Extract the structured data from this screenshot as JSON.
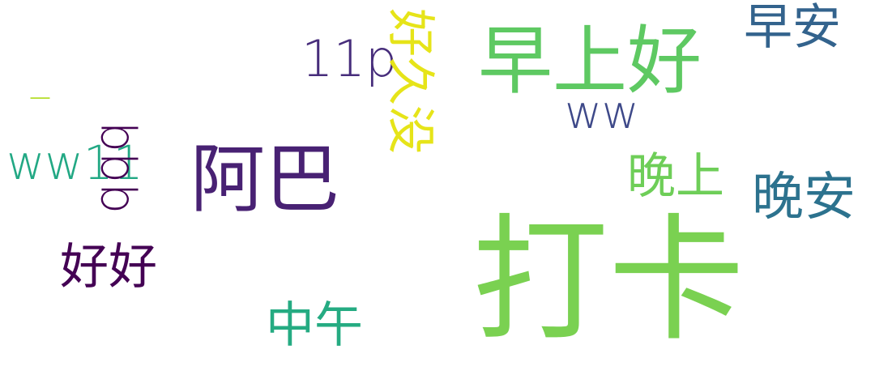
{
  "word_cloud": {
    "words": [
      {
        "key": "daka",
        "text": "打卡",
        "color": "#7ad151"
      },
      {
        "key": "zaoshanghao",
        "text": "早上好",
        "color": "#5ec962"
      },
      {
        "key": "aba",
        "text": "阿巴",
        "color": "#482173"
      },
      {
        "key": "wanan",
        "text": "晚安",
        "color": "#2c728e"
      },
      {
        "key": "zaoan",
        "text": "早安",
        "color": "#33638d"
      },
      {
        "key": "wanshang",
        "text": "晚上",
        "color": "#6ece58"
      },
      {
        "key": "haohao",
        "text": "好好",
        "color": "#440154"
      },
      {
        "key": "zhongwu",
        "text": "中午",
        "color": "#25ab82"
      },
      {
        "key": "ww",
        "text": "ww",
        "color": "#3e4989"
      },
      {
        "key": "ww11",
        "text": "ww11",
        "color": "#22a884"
      },
      {
        "key": "p11",
        "text": "11p",
        "color": "#472d7b"
      },
      {
        "key": "qqq",
        "text": "qqq",
        "color": "#440154"
      },
      {
        "key": "haojiumei",
        "text": "好久没",
        "color": "#e6e419"
      },
      {
        "key": "dash",
        "text": "_",
        "color": "#b5de2b"
      }
    ]
  }
}
